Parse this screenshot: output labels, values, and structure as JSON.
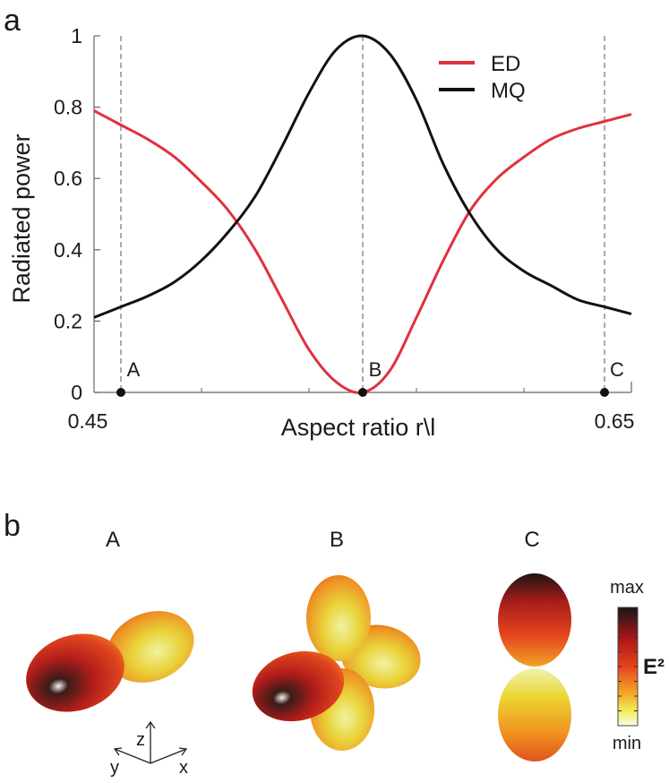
{
  "panel_a_label": "a",
  "panel_b_label": "b",
  "chart_data": {
    "type": "line",
    "xlabel": "Aspect ratio r\\l",
    "ylabel": "Radiated power",
    "xlim": [
      0.45,
      0.65
    ],
    "ylim": [
      0,
      1
    ],
    "x_tick_labels": [
      "0.45",
      "0.65"
    ],
    "y_ticks": [
      0,
      0.2,
      0.4,
      0.6,
      0.8,
      1
    ],
    "y_tick_labels": [
      "0",
      "0.2",
      "0.4",
      "0.6",
      "0.8",
      "1"
    ],
    "legend_position": "top-right",
    "grid": false,
    "series": [
      {
        "name": "ED",
        "color": "#e0313e",
        "x": [
          0.45,
          0.46,
          0.47,
          0.48,
          0.49,
          0.5,
          0.51,
          0.52,
          0.53,
          0.54,
          0.55,
          0.56,
          0.57,
          0.58,
          0.59,
          0.6,
          0.61,
          0.62,
          0.63,
          0.64,
          0.65
        ],
        "y": [
          0.79,
          0.75,
          0.71,
          0.66,
          0.59,
          0.51,
          0.4,
          0.26,
          0.12,
          0.03,
          0.0,
          0.06,
          0.21,
          0.37,
          0.51,
          0.6,
          0.66,
          0.71,
          0.74,
          0.76,
          0.78
        ]
      },
      {
        "name": "MQ",
        "color": "#111111",
        "x": [
          0.45,
          0.46,
          0.47,
          0.48,
          0.49,
          0.5,
          0.51,
          0.52,
          0.53,
          0.54,
          0.55,
          0.56,
          0.57,
          0.58,
          0.59,
          0.6,
          0.61,
          0.62,
          0.63,
          0.64,
          0.65
        ],
        "y": [
          0.21,
          0.24,
          0.27,
          0.31,
          0.37,
          0.45,
          0.55,
          0.69,
          0.84,
          0.96,
          1.0,
          0.95,
          0.82,
          0.64,
          0.5,
          0.4,
          0.34,
          0.3,
          0.26,
          0.24,
          0.22
        ]
      }
    ],
    "markers": [
      {
        "label": "A",
        "x": 0.46
      },
      {
        "label": "B",
        "x": 0.55
      },
      {
        "label": "C",
        "x": 0.64
      }
    ]
  },
  "field_patterns": {
    "items": [
      {
        "label": "A"
      },
      {
        "label": "B"
      },
      {
        "label": "C"
      }
    ],
    "colorbar": {
      "max_label": "max",
      "min_label": "min",
      "quantity_label": "E²"
    },
    "axes": {
      "z": "z",
      "y": "y",
      "x": "x"
    }
  }
}
